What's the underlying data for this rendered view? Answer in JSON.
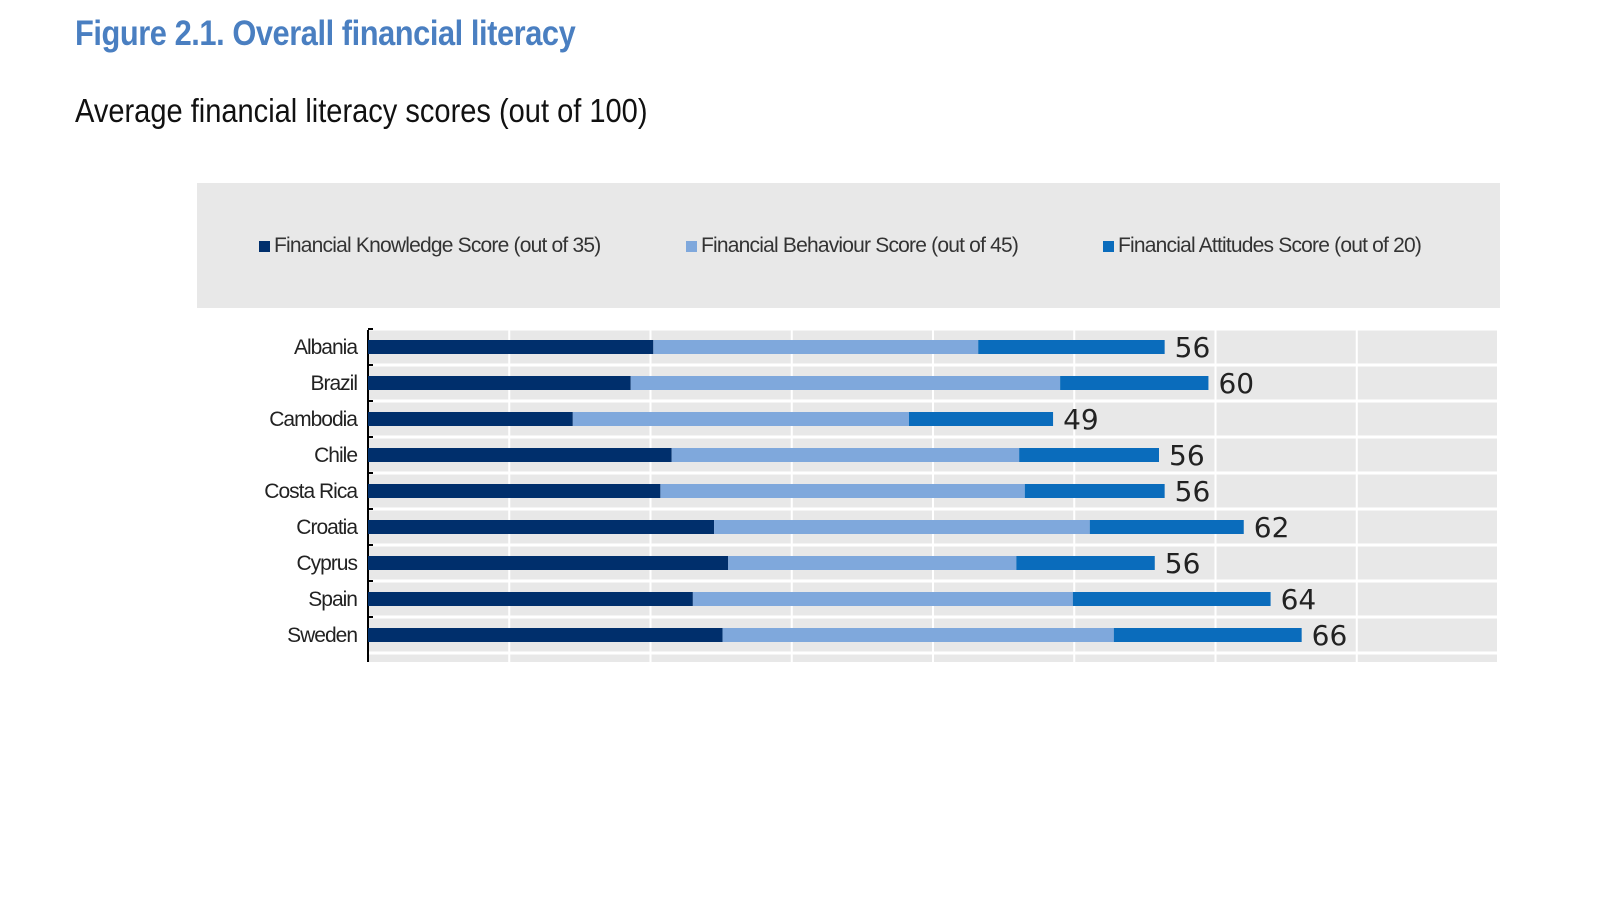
{
  "title": "Figure 2.1. Overall financial literacy",
  "subtitle": "Average financial literacy scores (out of 100)",
  "chart_data": {
    "type": "bar",
    "orientation": "horizontal",
    "stacked": true,
    "categories": [
      "Albania",
      "Brazil",
      "Cambodia",
      "Chile",
      "Costa Rica",
      "Croatia",
      "Cyprus",
      "Spain",
      "Sweden"
    ],
    "series": [
      {
        "name": "Financial Knowledge Score (out of 35)",
        "color": "#002f6c",
        "values": [
          20.2,
          18.6,
          14.5,
          21.5,
          20.7,
          24.5,
          25.5,
          23.0,
          25.1
        ]
      },
      {
        "name": "Financial Behaviour Score (out of 45)",
        "color": "#7fa8dc",
        "values": [
          23.0,
          30.4,
          23.8,
          24.6,
          25.8,
          26.6,
          20.4,
          26.9,
          27.7
        ]
      },
      {
        "name": "Financial Attitudes Score (out of 20)",
        "color": "#0a6cbc",
        "values": [
          13.2,
          10.5,
          10.2,
          9.9,
          9.9,
          10.9,
          9.8,
          14.0,
          13.3
        ]
      }
    ],
    "totals": [
      "56",
      "60",
      "49",
      "56",
      "56",
      "62",
      "56",
      "64",
      "66"
    ],
    "xlim": [
      0,
      80
    ],
    "grid": true,
    "legend": "top"
  }
}
